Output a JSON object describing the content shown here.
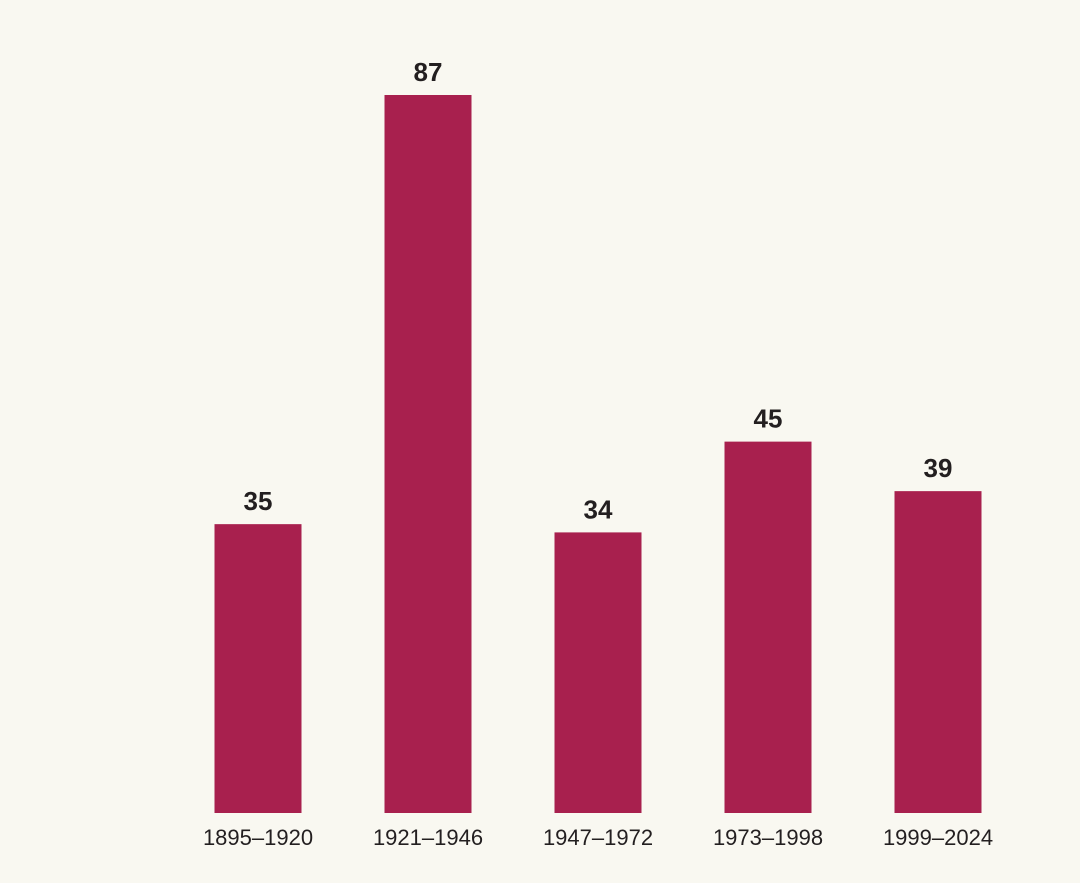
{
  "chart_data": {
    "type": "bar",
    "categories": [
      "1895–1920",
      "1921–1946",
      "1947–1972",
      "1973–1998",
      "1999–2024"
    ],
    "values": [
      35,
      87,
      34,
      45,
      39
    ],
    "color": "#a8204e"
  }
}
